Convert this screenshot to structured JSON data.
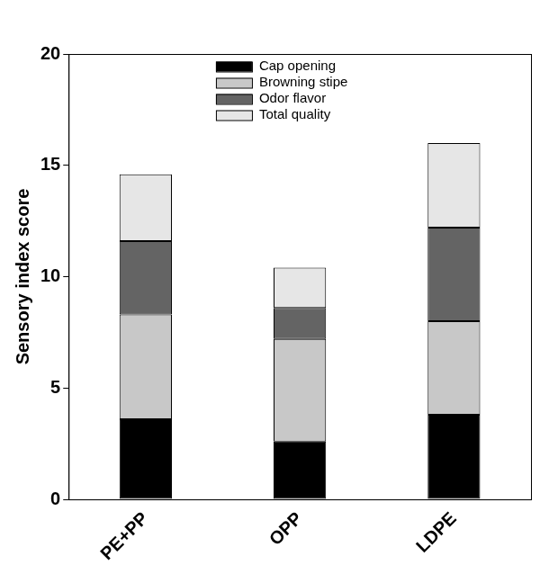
{
  "chart_data": {
    "type": "bar",
    "stacked": true,
    "y_label": "Sensory index score",
    "categories": [
      "PE+PP",
      "OPP",
      "LDPE"
    ],
    "series": [
      {
        "name": "Cap opening",
        "color": "#000000",
        "values": [
          3.6,
          2.6,
          3.8
        ]
      },
      {
        "name": "Browning stipe",
        "color": "#c8c8c8",
        "values": [
          4.7,
          4.6,
          4.2
        ]
      },
      {
        "name": "Odor flavor",
        "color": "#646464",
        "values": [
          3.3,
          1.4,
          4.2
        ]
      },
      {
        "name": "Total quality",
        "color": "#e6e6e6",
        "values": [
          3.0,
          1.8,
          3.8
        ]
      }
    ],
    "ylim": [
      0,
      20
    ],
    "yticks": [
      0,
      5,
      10,
      15,
      20
    ],
    "grid": false,
    "legend": "top"
  }
}
